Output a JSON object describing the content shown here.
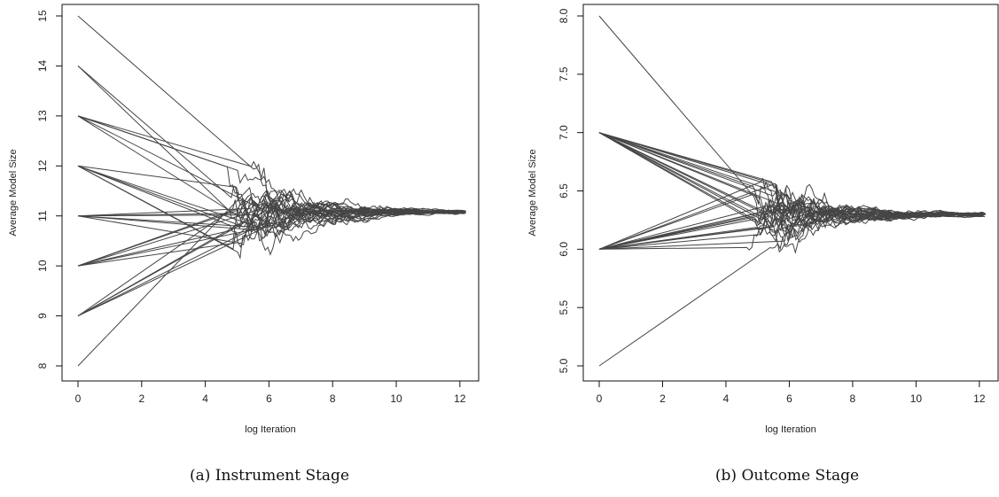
{
  "chart_data": [
    {
      "type": "line",
      "caption": "(a) Instrument Stage",
      "xlabel": "log Iteration",
      "ylabel": "Average Model Size",
      "xlim": [
        0,
        12.2
      ],
      "ylim": [
        8,
        15
      ],
      "xticks": [
        0,
        2,
        4,
        6,
        8,
        10,
        12
      ],
      "yticks": [
        8,
        9,
        10,
        11,
        12,
        13,
        14,
        15
      ],
      "grid": false,
      "converged_value": 11.08,
      "start_values": [
        15,
        14,
        14,
        13,
        13,
        13,
        13,
        13,
        12,
        12,
        12,
        12,
        12,
        12,
        11,
        11,
        11,
        11,
        11,
        11,
        10,
        10,
        10,
        10,
        10,
        10,
        9,
        9,
        9,
        9,
        9,
        8
      ],
      "series_count": 32
    },
    {
      "type": "line",
      "caption": "(b) Outcome Stage",
      "xlabel": "log Iteration",
      "ylabel": "Average Model Size",
      "xlim": [
        0,
        12.2
      ],
      "ylim": [
        5.0,
        8.0
      ],
      "xticks": [
        0,
        2,
        4,
        6,
        8,
        10,
        12
      ],
      "yticks": [
        5.0,
        5.5,
        6.0,
        6.5,
        7.0,
        7.5,
        8.0
      ],
      "grid": false,
      "converged_value": 6.3,
      "start_values": [
        8,
        7,
        7,
        7,
        7,
        7,
        7,
        7,
        7,
        7,
        7,
        7,
        7,
        7,
        7,
        6,
        6,
        6,
        6,
        6,
        6,
        6,
        6,
        6,
        6,
        6,
        6,
        6,
        6,
        6,
        5
      ],
      "series_count": 31
    }
  ]
}
